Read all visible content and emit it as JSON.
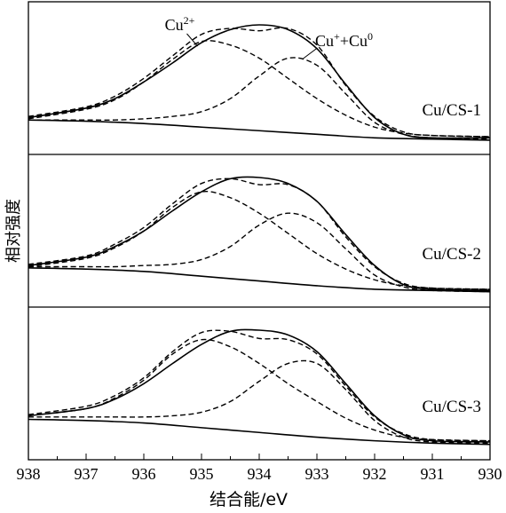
{
  "chart_data": {
    "type": "line",
    "xlabel": "结合能/eV",
    "ylabel": "相对强度",
    "xlim": [
      938,
      930
    ],
    "x_ticks": [
      "938",
      "937",
      "936",
      "935",
      "934",
      "933",
      "932",
      "931",
      "930"
    ],
    "grid": false,
    "panels": [
      {
        "label": "Cu/CS-1",
        "annotations": [
          {
            "text": "Cu",
            "sup": "2+",
            "x": 935.1
          },
          {
            "text": "Cu",
            "sup": "+",
            "text2": "+Cu",
            "sup2": "0",
            "x": 933.3
          }
        ],
        "series": [
          {
            "style": "solid",
            "x": [
              938,
              937,
              936.5,
              936,
              935.5,
              935,
              934.5,
              934,
              933.5,
              933,
              932.5,
              932,
              931.5,
              931,
              930
            ],
            "y": [
              0.22,
              0.3,
              0.38,
              0.52,
              0.68,
              0.85,
              0.96,
              1.0,
              0.96,
              0.8,
              0.5,
              0.22,
              0.08,
              0.05,
              0.05
            ]
          },
          {
            "style": "dashed",
            "x": [
              938,
              937,
              936.5,
              936,
              935.5,
              935,
              934.5,
              934,
              933.5,
              933,
              932.5,
              932,
              931.5,
              931,
              930
            ],
            "y": [
              0.23,
              0.31,
              0.4,
              0.55,
              0.74,
              0.92,
              0.97,
              0.95,
              0.97,
              0.83,
              0.49,
              0.23,
              0.1,
              0.07,
              0.06
            ]
          },
          {
            "style": "dashed",
            "x": [
              938,
              937,
              936.5,
              936,
              935.5,
              935,
              934.5,
              934,
              933.5,
              933,
              932.5,
              932,
              931.5,
              931,
              930
            ],
            "y": [
              0.21,
              0.29,
              0.37,
              0.52,
              0.71,
              0.86,
              0.83,
              0.72,
              0.55,
              0.38,
              0.24,
              0.14,
              0.09,
              0.07,
              0.06
            ]
          },
          {
            "style": "dashed",
            "x": [
              938,
              937,
              936.5,
              936,
              935.5,
              935,
              934.5,
              934,
              933.5,
              933,
              932.5,
              932,
              931.5,
              931,
              930
            ],
            "y": [
              0.2,
              0.2,
              0.2,
              0.21,
              0.23,
              0.27,
              0.38,
              0.57,
              0.72,
              0.66,
              0.42,
              0.18,
              0.08,
              0.05,
              0.04
            ]
          },
          {
            "style": "solid",
            "x": [
              938,
              937,
              936,
              935,
              934,
              933,
              932,
              931,
              930
            ],
            "y": [
              0.2,
              0.19,
              0.17,
              0.14,
              0.11,
              0.08,
              0.05,
              0.04,
              0.03
            ]
          }
        ]
      },
      {
        "label": "Cu/CS-2",
        "annotations": [],
        "series": [
          {
            "style": "solid",
            "x": [
              938,
              937,
              936.5,
              936,
              935.5,
              935,
              934.5,
              934,
              933.5,
              933,
              932.5,
              932,
              931.5,
              931,
              930
            ],
            "y": [
              0.26,
              0.33,
              0.42,
              0.55,
              0.72,
              0.88,
              0.99,
              1.0,
              0.95,
              0.8,
              0.52,
              0.26,
              0.1,
              0.06,
              0.05
            ]
          },
          {
            "style": "dashed",
            "x": [
              938,
              937,
              936.5,
              936,
              935.5,
              935,
              934.5,
              934,
              933.5,
              933,
              932.5,
              932,
              931.5,
              931,
              930
            ],
            "y": [
              0.27,
              0.34,
              0.44,
              0.58,
              0.78,
              0.95,
              0.99,
              0.94,
              0.94,
              0.8,
              0.5,
              0.25,
              0.11,
              0.07,
              0.06
            ]
          },
          {
            "style": "dashed",
            "x": [
              938,
              937,
              936.5,
              936,
              935.5,
              935,
              934.5,
              934,
              933.5,
              933,
              932.5,
              932,
              931.5,
              931,
              930
            ],
            "y": [
              0.25,
              0.32,
              0.41,
              0.55,
              0.75,
              0.88,
              0.83,
              0.7,
              0.53,
              0.36,
              0.23,
              0.14,
              0.09,
              0.07,
              0.06
            ]
          },
          {
            "style": "dashed",
            "x": [
              938,
              937,
              936.5,
              936,
              935.5,
              935,
              934.5,
              934,
              933.5,
              933,
              932.5,
              932,
              931.5,
              931,
              930
            ],
            "y": [
              0.25,
              0.25,
              0.25,
              0.26,
              0.27,
              0.31,
              0.42,
              0.6,
              0.7,
              0.62,
              0.4,
              0.18,
              0.08,
              0.05,
              0.04
            ]
          },
          {
            "style": "solid",
            "x": [
              938,
              937,
              936,
              935,
              934,
              933,
              932,
              931,
              930
            ],
            "y": [
              0.24,
              0.23,
              0.21,
              0.17,
              0.13,
              0.09,
              0.06,
              0.05,
              0.04
            ]
          }
        ]
      },
      {
        "label": "Cu/CS-3",
        "annotations": [],
        "series": [
          {
            "style": "solid",
            "x": [
              938,
              937,
              936.5,
              936,
              935.5,
              935,
              934.5,
              934,
              933.5,
              933,
              932.5,
              932,
              931.5,
              931,
              930
            ],
            "y": [
              0.28,
              0.34,
              0.42,
              0.55,
              0.72,
              0.88,
              0.99,
              1.0,
              0.96,
              0.82,
              0.55,
              0.28,
              0.12,
              0.07,
              0.06
            ]
          },
          {
            "style": "dashed",
            "x": [
              938,
              937,
              936.5,
              936,
              935.5,
              935,
              934.5,
              934,
              933.5,
              933,
              932.5,
              932,
              931.5,
              931,
              930
            ],
            "y": [
              0.29,
              0.36,
              0.45,
              0.6,
              0.82,
              0.98,
              0.99,
              0.93,
              0.92,
              0.8,
              0.53,
              0.27,
              0.13,
              0.08,
              0.07
            ]
          },
          {
            "style": "dashed",
            "x": [
              938,
              937,
              936.5,
              936,
              935.5,
              935,
              934.5,
              934,
              933.5,
              933,
              932.5,
              932,
              931.5,
              931,
              930
            ],
            "y": [
              0.28,
              0.34,
              0.43,
              0.58,
              0.8,
              0.92,
              0.86,
              0.72,
              0.55,
              0.4,
              0.26,
              0.16,
              0.1,
              0.08,
              0.07
            ]
          },
          {
            "style": "dashed",
            "x": [
              938,
              937,
              936.5,
              936,
              935.5,
              935,
              934.5,
              934,
              933.5,
              933,
              932.5,
              932,
              931.5,
              931,
              930
            ],
            "y": [
              0.27,
              0.27,
              0.27,
              0.27,
              0.28,
              0.31,
              0.4,
              0.57,
              0.72,
              0.72,
              0.5,
              0.24,
              0.1,
              0.06,
              0.05
            ]
          },
          {
            "style": "solid",
            "x": [
              938,
              937,
              936,
              935,
              934,
              933,
              932,
              931,
              930
            ],
            "y": [
              0.25,
              0.24,
              0.22,
              0.18,
              0.14,
              0.1,
              0.07,
              0.05,
              0.04
            ]
          }
        ]
      }
    ]
  }
}
